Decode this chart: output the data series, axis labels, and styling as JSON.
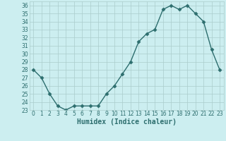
{
  "x": [
    0,
    1,
    2,
    3,
    4,
    5,
    6,
    7,
    8,
    9,
    10,
    11,
    12,
    13,
    14,
    15,
    16,
    17,
    18,
    19,
    20,
    21,
    22,
    23
  ],
  "y": [
    28,
    27,
    25,
    23.5,
    23,
    23.5,
    23.5,
    23.5,
    23.5,
    25,
    26,
    27.5,
    29,
    31.5,
    32.5,
    33,
    35.5,
    36,
    35.5,
    36,
    35,
    34,
    30.5,
    28
  ],
  "line_color": "#2d6e6e",
  "marker": "D",
  "markersize": 2.5,
  "linewidth": 1.0,
  "bg_color": "#cceef0",
  "grid_color": "#aacccc",
  "xlabel": "Humidex (Indice chaleur)",
  "xlim": [
    -0.5,
    23.5
  ],
  "ylim": [
    23,
    36.5
  ],
  "yticks": [
    23,
    24,
    25,
    26,
    27,
    28,
    29,
    30,
    31,
    32,
    33,
    34,
    35,
    36
  ],
  "xticks": [
    0,
    1,
    2,
    3,
    4,
    5,
    6,
    7,
    8,
    9,
    10,
    11,
    12,
    13,
    14,
    15,
    16,
    17,
    18,
    19,
    20,
    21,
    22,
    23
  ],
  "tick_label_fontsize": 5.5,
  "xlabel_fontsize": 7
}
